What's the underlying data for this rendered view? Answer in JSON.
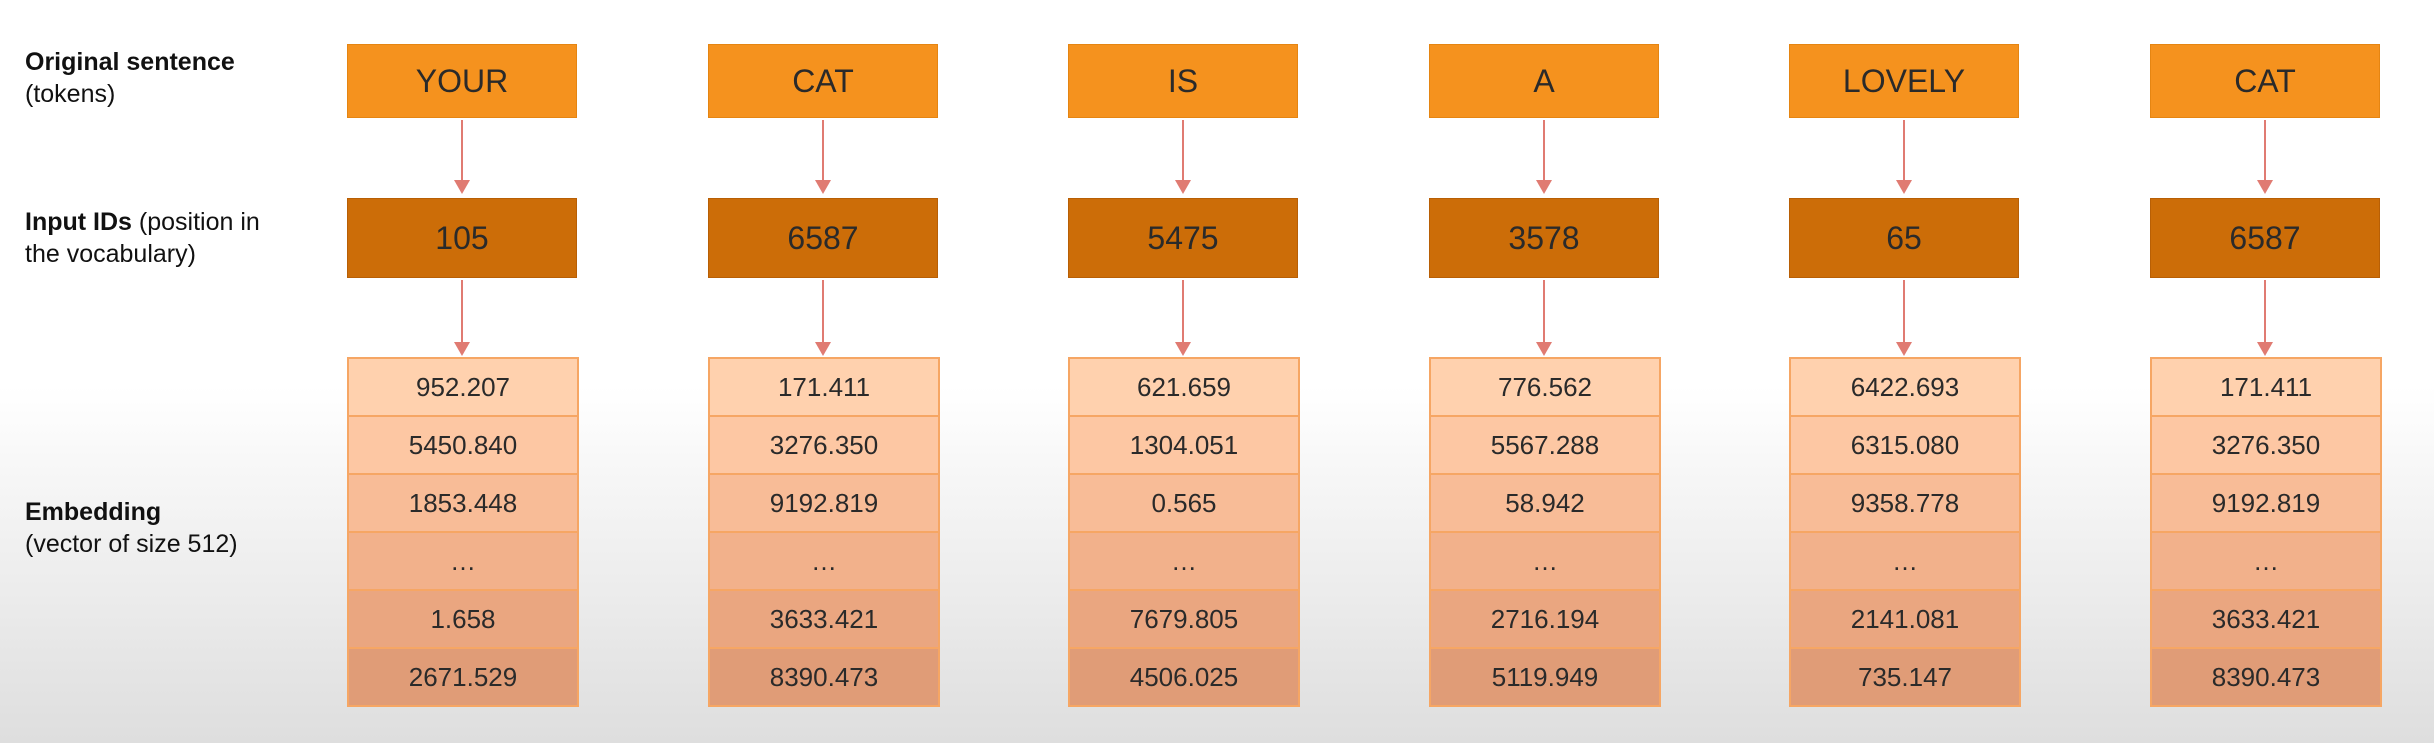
{
  "labels": {
    "tokens_title": "Original sentence",
    "tokens_sub": "(tokens)",
    "ids_title": "Input IDs",
    "ids_sub_1": "(position in",
    "ids_sub_2": "the vocabulary)",
    "emb_title": "Embedding",
    "emb_sub": "(vector of size 512)"
  },
  "columns": [
    {
      "token": "YOUR",
      "id": "105",
      "embedding": [
        "952.207",
        "5450.840",
        "1853.448",
        "…",
        "1.658",
        "2671.529"
      ]
    },
    {
      "token": "CAT",
      "id": "6587",
      "embedding": [
        "171.411",
        "3276.350",
        "9192.819",
        "…",
        "3633.421",
        "8390.473"
      ]
    },
    {
      "token": "IS",
      "id": "5475",
      "embedding": [
        "621.659",
        "1304.051",
        "0.565",
        "…",
        "7679.805",
        "4506.025"
      ]
    },
    {
      "token": "A",
      "id": "3578",
      "embedding": [
        "776.562",
        "5567.288",
        "58.942",
        "…",
        "2716.194",
        "5119.949"
      ]
    },
    {
      "token": "LOVELY",
      "id": "65",
      "embedding": [
        "6422.693",
        "6315.080",
        "9358.778",
        "…",
        "2141.081",
        "735.147"
      ]
    },
    {
      "token": "CAT",
      "id": "6587",
      "embedding": [
        "171.411",
        "3276.350",
        "9192.819",
        "…",
        "3633.421",
        "8390.473"
      ]
    }
  ],
  "colors": {
    "token_box": "#f5921e",
    "id_box": "#cc6d08",
    "embedding_top": "#ffd1ae",
    "embedding_bottom": "#e09c77",
    "arrow": "#e07b72"
  }
}
